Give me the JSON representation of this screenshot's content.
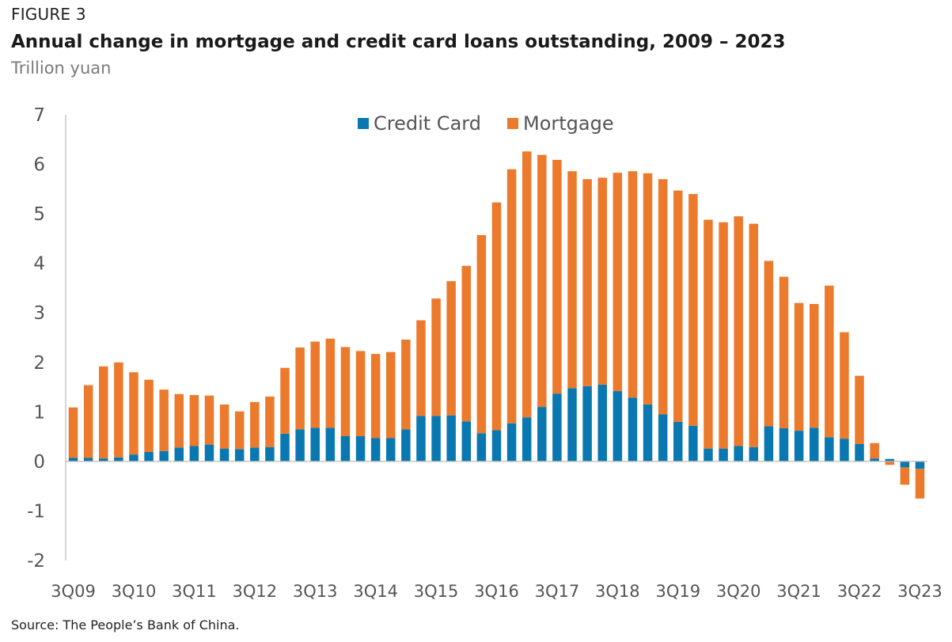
{
  "figure_label": "FIGURE 3",
  "title": "Annual change in mortgage and credit card loans outstanding, 2009 – 2023",
  "subtitle": "Trillion yuan",
  "source": "Source: The People’s Bank of China.",
  "colors": {
    "credit_card": "#0a78b0",
    "mortgage": "#ec7a2c",
    "axis": "#c8c8c8",
    "tick_text": "#555555"
  },
  "chart_data": {
    "type": "bar",
    "stacked": true,
    "ylim": [
      -2,
      7
    ],
    "yticks": [
      -2,
      -1,
      0,
      1,
      2,
      3,
      4,
      5,
      6,
      7
    ],
    "xtick_labels": [
      "3Q09",
      "3Q10",
      "3Q11",
      "3Q12",
      "3Q13",
      "3Q14",
      "3Q15",
      "3Q16",
      "3Q17",
      "3Q18",
      "3Q19",
      "3Q20",
      "3Q21",
      "3Q22",
      "3Q23"
    ],
    "legend_position": "top-center",
    "grid": false,
    "categories": [
      "3Q09",
      "4Q09",
      "1Q10",
      "2Q10",
      "3Q10",
      "4Q10",
      "1Q11",
      "2Q11",
      "3Q11",
      "4Q11",
      "1Q12",
      "2Q12",
      "3Q12",
      "4Q12",
      "1Q13",
      "2Q13",
      "3Q13",
      "4Q13",
      "1Q14",
      "2Q14",
      "3Q14",
      "4Q14",
      "1Q15",
      "2Q15",
      "3Q15",
      "4Q15",
      "1Q16",
      "2Q16",
      "3Q16",
      "4Q16",
      "1Q17",
      "2Q17",
      "3Q17",
      "4Q17",
      "1Q18",
      "2Q18",
      "3Q18",
      "4Q18",
      "1Q19",
      "2Q19",
      "3Q19",
      "4Q19",
      "1Q20",
      "2Q20",
      "3Q20",
      "4Q20",
      "1Q21",
      "2Q21",
      "3Q21",
      "4Q21",
      "1Q22",
      "2Q22",
      "3Q22",
      "4Q22",
      "1Q23",
      "2Q23",
      "3Q23"
    ],
    "series": [
      {
        "name": "Credit Card",
        "values": [
          0.07,
          0.07,
          0.06,
          0.08,
          0.14,
          0.19,
          0.21,
          0.28,
          0.31,
          0.34,
          0.26,
          0.25,
          0.28,
          0.29,
          0.56,
          0.65,
          0.68,
          0.68,
          0.51,
          0.51,
          0.47,
          0.47,
          0.65,
          0.92,
          0.92,
          0.93,
          0.81,
          0.57,
          0.63,
          0.77,
          0.89,
          1.1,
          1.37,
          1.48,
          1.52,
          1.55,
          1.42,
          1.29,
          1.15,
          0.95,
          0.8,
          0.72,
          0.26,
          0.26,
          0.31,
          0.29,
          0.71,
          0.67,
          0.62,
          0.68,
          0.49,
          0.46,
          0.35,
          0.06,
          0.05,
          -0.12,
          -0.15
        ]
      },
      {
        "name": "Mortgage",
        "values": [
          1.02,
          1.47,
          1.86,
          1.92,
          1.66,
          1.46,
          1.24,
          1.08,
          1.03,
          0.99,
          0.89,
          0.76,
          0.92,
          1.02,
          1.33,
          1.65,
          1.74,
          1.8,
          1.8,
          1.72,
          1.7,
          1.74,
          1.81,
          1.93,
          2.37,
          2.71,
          3.14,
          4.0,
          4.6,
          5.13,
          5.37,
          5.09,
          4.72,
          4.38,
          4.18,
          4.18,
          4.41,
          4.57,
          4.67,
          4.75,
          4.67,
          4.68,
          4.62,
          4.57,
          4.64,
          4.51,
          3.34,
          3.06,
          2.58,
          2.5,
          3.06,
          2.15,
          1.38,
          0.31,
          -0.07,
          -0.35,
          -0.6
        ]
      }
    ]
  }
}
